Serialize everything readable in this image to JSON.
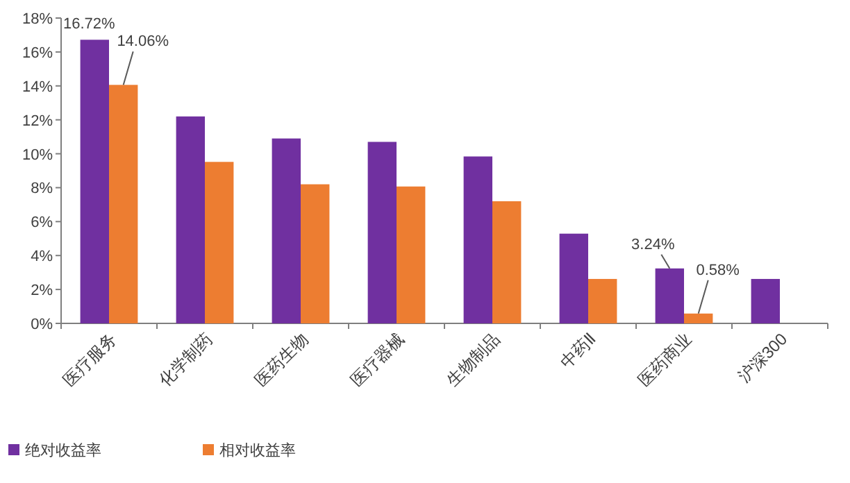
{
  "chart_data": {
    "type": "bar",
    "categories": [
      "医疗服务",
      "化学制药",
      "医药生物",
      "医疗器械",
      "生物制品",
      "中药Ⅱ",
      "医药商业",
      "沪深300"
    ],
    "series": [
      {
        "name": "绝对收益率",
        "color": "#7030a0",
        "values": [
          16.72,
          12.2,
          10.9,
          10.7,
          9.84,
          5.29,
          3.24,
          2.62
        ],
        "value_labels": [
          "16.72%",
          null,
          null,
          null,
          null,
          null,
          "3.24%",
          null
        ]
      },
      {
        "name": "相对收益率",
        "color": "#ed7d31",
        "values": [
          14.06,
          9.52,
          8.2,
          8.07,
          7.2,
          2.62,
          0.58,
          null
        ],
        "value_labels": [
          "14.06%",
          null,
          null,
          null,
          null,
          null,
          "0.58%",
          null
        ]
      }
    ],
    "ylim": [
      0,
      18
    ],
    "yticks": [
      {
        "value": 0,
        "label": "0%"
      },
      {
        "value": 2,
        "label": "2%"
      },
      {
        "value": 4,
        "label": "4%"
      },
      {
        "value": 6,
        "label": "6%"
      },
      {
        "value": 8,
        "label": "8%"
      },
      {
        "value": 10,
        "label": "10%"
      },
      {
        "value": 12,
        "label": "12%"
      },
      {
        "value": 14,
        "label": "14%"
      },
      {
        "value": 16,
        "label": "16%"
      },
      {
        "value": 18,
        "label": "18%"
      }
    ],
    "grid": false,
    "legend": "bottom left"
  }
}
